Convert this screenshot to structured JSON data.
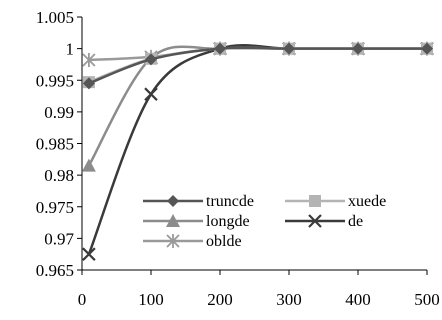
{
  "chart_data": {
    "type": "line",
    "title": "",
    "xlabel": "",
    "ylabel": "",
    "x": [
      10,
      100,
      200,
      300,
      400,
      500
    ],
    "xlim": [
      0,
      500
    ],
    "ylim": [
      0.965,
      1.005
    ],
    "x_ticks": [
      0,
      100,
      200,
      300,
      400,
      500
    ],
    "y_ticks": [
      0.965,
      0.97,
      0.975,
      0.98,
      0.985,
      0.99,
      0.995,
      1,
      1.005
    ],
    "x_tick_labels": [
      "0",
      "100",
      "200",
      "300",
      "400",
      "500"
    ],
    "y_tick_labels": [
      "0.965",
      "0.97",
      "0.975",
      "0.98",
      "0.985",
      "0.99",
      "0.995",
      "1",
      "1.005"
    ],
    "grid": false,
    "legend_position": "bottom-right",
    "series": [
      {
        "name": "truncde",
        "values": [
          0.9945,
          0.9983,
          1.0,
          1.0,
          1.0,
          1.0
        ],
        "marker": "diamond",
        "color": "#555555"
      },
      {
        "name": "xuede",
        "values": [
          0.9947,
          0.9984,
          1.0,
          1.0,
          1.0,
          1.0
        ],
        "marker": "square",
        "color": "#b4b4b4"
      },
      {
        "name": "longde",
        "values": [
          0.9815,
          0.9985,
          1.0,
          1.0,
          1.0,
          1.0
        ],
        "marker": "triangle",
        "color": "#8c8c8c"
      },
      {
        "name": "de",
        "values": [
          0.9675,
          0.9928,
          1.0,
          1.0,
          1.0,
          1.0
        ],
        "marker": "x",
        "color": "#3a3a3a"
      },
      {
        "name": "oblde",
        "values": [
          0.9982,
          0.9987,
          1.0,
          1.0,
          1.0,
          1.0
        ],
        "marker": "star",
        "color": "#9a9a9a"
      }
    ]
  }
}
